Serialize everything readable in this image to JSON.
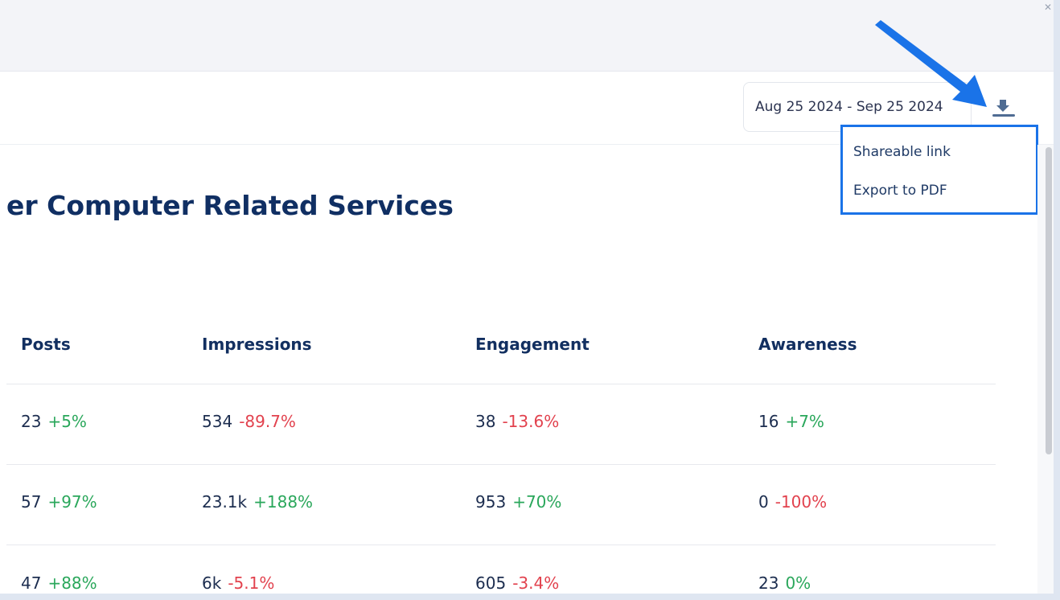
{
  "header": {
    "date_range": "Aug 25 2024 - Sep 25 2024",
    "download_icon": "download-icon"
  },
  "dropdown": {
    "items": [
      {
        "label": "Shareable link"
      },
      {
        "label": "Export to PDF"
      }
    ],
    "highlight_color": "#1a73e8"
  },
  "page": {
    "title": "er Computer Related Services"
  },
  "table": {
    "columns": [
      "Posts",
      "Impressions",
      "Engagement",
      "Awareness"
    ],
    "rows": [
      [
        {
          "value": "23",
          "delta": "+5%",
          "trend": "up"
        },
        {
          "value": "534",
          "delta": "-89.7%",
          "trend": "down"
        },
        {
          "value": "38",
          "delta": "-13.6%",
          "trend": "down"
        },
        {
          "value": "16",
          "delta": "+7%",
          "trend": "up"
        }
      ],
      [
        {
          "value": "57",
          "delta": "+97%",
          "trend": "up"
        },
        {
          "value": "23.1k",
          "delta": "+188%",
          "trend": "up"
        },
        {
          "value": "953",
          "delta": "+70%",
          "trend": "up"
        },
        {
          "value": "0",
          "delta": "-100%",
          "trend": "down"
        }
      ],
      [
        {
          "value": "47",
          "delta": "+88%",
          "trend": "up"
        },
        {
          "value": "6k",
          "delta": "-5.1%",
          "trend": "down"
        },
        {
          "value": "605",
          "delta": "-3.4%",
          "trend": "down"
        },
        {
          "value": "23",
          "delta": "0%",
          "trend": "up"
        }
      ]
    ]
  },
  "colors": {
    "positive": "#2aa75b",
    "negative": "#e2424e",
    "title": "#102f63",
    "annotation_arrow": "#1a73e8"
  }
}
